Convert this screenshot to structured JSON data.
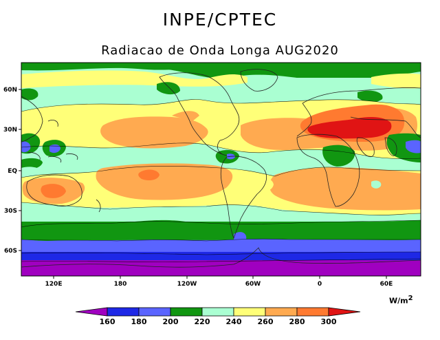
{
  "header": {
    "title": "INPE/CPTEC",
    "subtitle": "Radiacao de Onda Longa AUG2020"
  },
  "map": {
    "lat_labels": [
      "60N",
      "30N",
      "EQ",
      "30S",
      "60S"
    ],
    "lon_labels": [
      "120E",
      "180",
      "120W",
      "60W",
      "0",
      "60E"
    ]
  },
  "colorbar": {
    "units": "W/m",
    "units_exp": "2",
    "levels": [
      "160",
      "180",
      "200",
      "220",
      "240",
      "260",
      "280",
      "300"
    ],
    "colors": [
      "#a000c0",
      "#1e28e6",
      "#5a64ff",
      "#119611",
      "#aaffd2",
      "#ffff78",
      "#ffaa50",
      "#ff7a30",
      "#e01414"
    ]
  }
}
